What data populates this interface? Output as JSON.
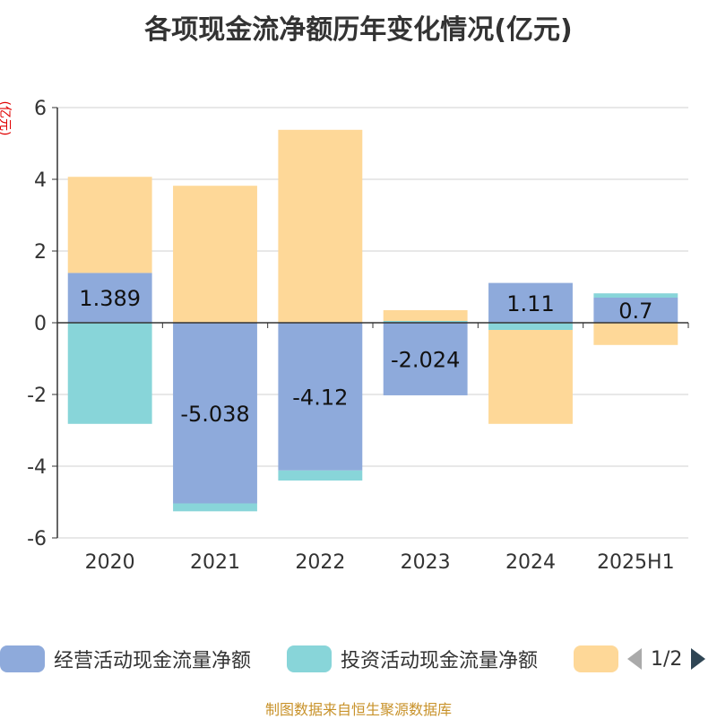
{
  "chart_data": {
    "type": "bar",
    "stacked": true,
    "title": "各项现金流净额历年变化情况(亿元)",
    "ylabel": "(亿元)",
    "xlabel": "",
    "ylim": [
      -6,
      6
    ],
    "yticks": [
      -6,
      -4,
      -2,
      0,
      2,
      4,
      6
    ],
    "grid": true,
    "categories": [
      "2020",
      "2021",
      "2022",
      "2023",
      "2024",
      "2025H1"
    ],
    "series": [
      {
        "name": "经营活动现金流量净额",
        "color": "#8eaadb",
        "values": [
          1.389,
          -5.038,
          -4.12,
          -2.024,
          1.11,
          0.7
        ],
        "labels": [
          "1.389",
          "-5.038",
          "-4.12",
          "-2.024",
          "1.11",
          "0.7"
        ]
      },
      {
        "name": "投资活动现金流量净额",
        "color": "#88d5d9",
        "values": [
          -2.82,
          -0.22,
          -0.28,
          0.05,
          -0.2,
          0.12
        ]
      },
      {
        "name": "",
        "color": "#fed898",
        "values": [
          2.68,
          3.82,
          5.38,
          0.3,
          -2.62,
          -0.62
        ]
      }
    ]
  },
  "legend": {
    "items": [
      {
        "label": "经营活动现金流量净额",
        "color": "#8eaadb"
      },
      {
        "label": "投资活动现金流量净额",
        "color": "#88d5d9"
      },
      {
        "label": "",
        "color": "#fed898"
      }
    ],
    "pager": "1/2",
    "prev_icon": "triangle-left-icon",
    "next_icon": "triangle-right-icon"
  },
  "source_note": "制图数据来自恒生聚源数据库"
}
